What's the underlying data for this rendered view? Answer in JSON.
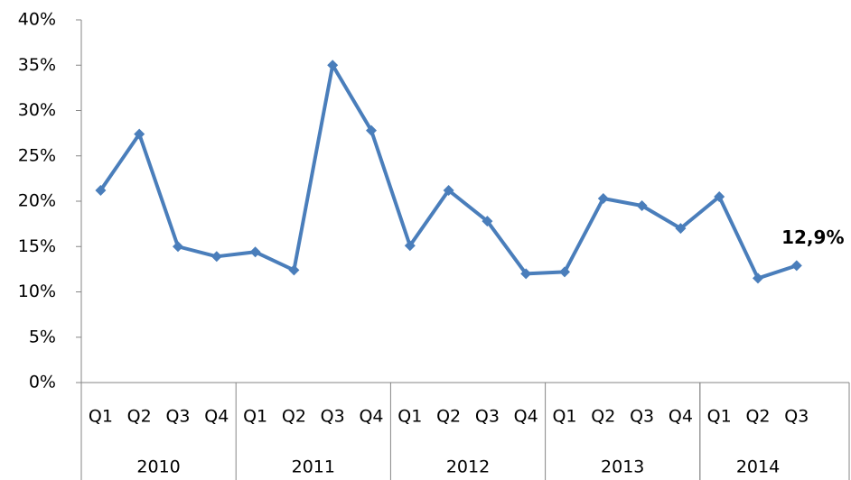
{
  "chart_data": {
    "type": "line",
    "category_groups": [
      {
        "name": "2010",
        "categories": [
          "Q1",
          "Q2",
          "Q3",
          "Q4"
        ]
      },
      {
        "name": "2011",
        "categories": [
          "Q1",
          "Q2",
          "Q3",
          "Q4"
        ]
      },
      {
        "name": "2012",
        "categories": [
          "Q1",
          "Q2",
          "Q3",
          "Q4"
        ]
      },
      {
        "name": "2013",
        "categories": [
          "Q1",
          "Q2",
          "Q3",
          "Q4"
        ]
      },
      {
        "name": "2014",
        "categories": [
          "Q1",
          "Q2",
          "Q3"
        ]
      }
    ],
    "values": [
      21.2,
      27.4,
      15.0,
      13.9,
      14.4,
      12.4,
      35.0,
      27.8,
      15.1,
      21.2,
      17.8,
      12.0,
      12.2,
      20.3,
      19.5,
      17.0,
      20.5,
      11.5,
      12.9
    ],
    "value_labels": [
      null,
      null,
      null,
      null,
      null,
      null,
      null,
      null,
      null,
      null,
      null,
      null,
      null,
      null,
      null,
      null,
      null,
      null,
      "12,9%"
    ],
    "color": "#4a7ebb",
    "ylim": [
      0,
      40
    ],
    "yticks": [
      {
        "value": 0,
        "label": "0%"
      },
      {
        "value": 5,
        "label": "5%"
      },
      {
        "value": 10,
        "label": "10%"
      },
      {
        "value": 15,
        "label": "15%"
      },
      {
        "value": 20,
        "label": "20%"
      },
      {
        "value": 25,
        "label": "25%"
      },
      {
        "value": 30,
        "label": "30%"
      },
      {
        "value": 35,
        "label": "35%"
      },
      {
        "value": 40,
        "label": "40%"
      }
    ],
    "grid": false
  }
}
